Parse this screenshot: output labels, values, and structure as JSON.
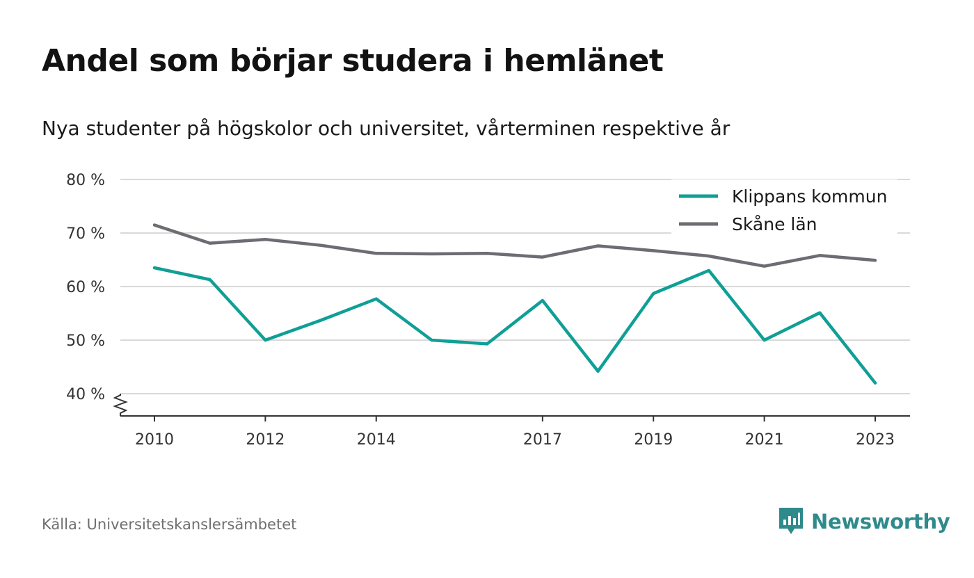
{
  "title": "Andel som börjar studera i hemlänet",
  "subtitle": "Nya studenter på högskolor och universitet, vårterminen respektive år",
  "source": "Källa: Universitetskanslersämbetet",
  "brand": {
    "name": "Newsworthy",
    "icon": "newsworthy-logo-icon",
    "color": "#2f8a8c"
  },
  "colors": {
    "klippan": "#0f9f96",
    "skane": "#6e6c73",
    "grid": "#d9d9d9",
    "axis": "#333333"
  },
  "chart_data": {
    "type": "line",
    "title": "Andel som börjar studera i hemlänet",
    "x": [
      2010,
      2011,
      2012,
      2013,
      2014,
      2015,
      2016,
      2017,
      2018,
      2019,
      2020,
      2021,
      2022,
      2023
    ],
    "x_tick_labels": [
      "2010",
      "2012",
      "2014",
      "2017",
      "2019",
      "2021",
      "2023"
    ],
    "y_tick_values": [
      40,
      50,
      60,
      70,
      80
    ],
    "y_tick_labels": [
      "40 %",
      "50 %",
      "60 %",
      "70 %",
      "80 %"
    ],
    "ylim": [
      40,
      80
    ],
    "y_axis_break": true,
    "grid": true,
    "legend_position": "top-right",
    "series": [
      {
        "name": "Klippans kommun",
        "color": "#0f9f96",
        "values": [
          63.5,
          61.3,
          50.0,
          53.7,
          57.7,
          50.0,
          49.3,
          57.4,
          44.2,
          58.7,
          63.0,
          50.0,
          55.1,
          42.0
        ]
      },
      {
        "name": "Skåne län",
        "color": "#6e6c73",
        "values": [
          71.5,
          68.1,
          68.8,
          67.7,
          66.2,
          66.1,
          66.2,
          65.5,
          67.6,
          66.7,
          65.7,
          63.8,
          65.8,
          64.9
        ]
      }
    ]
  }
}
